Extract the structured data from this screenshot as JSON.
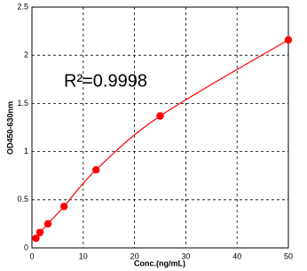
{
  "chart_data": {
    "type": "scatter",
    "annotation": "R²=0.9998",
    "x_label": "Conc.(ng/mL)",
    "y_label": "OD450-630nm",
    "series": [
      {
        "color": "#ff0000",
        "x": [
          0.78,
          1.56,
          3.12,
          6.25,
          12.5,
          25,
          50
        ],
        "values": [
          0.1,
          0.16,
          0.25,
          0.43,
          0.81,
          1.37,
          2.16
        ]
      }
    ],
    "xlim": [
      0,
      50
    ],
    "xticks": [
      0,
      10,
      20,
      30,
      40,
      50
    ],
    "ylim": [
      0,
      2.5
    ],
    "yticks": [
      0,
      0.5,
      1,
      1.5,
      2,
      2.5
    ],
    "grid": true
  }
}
